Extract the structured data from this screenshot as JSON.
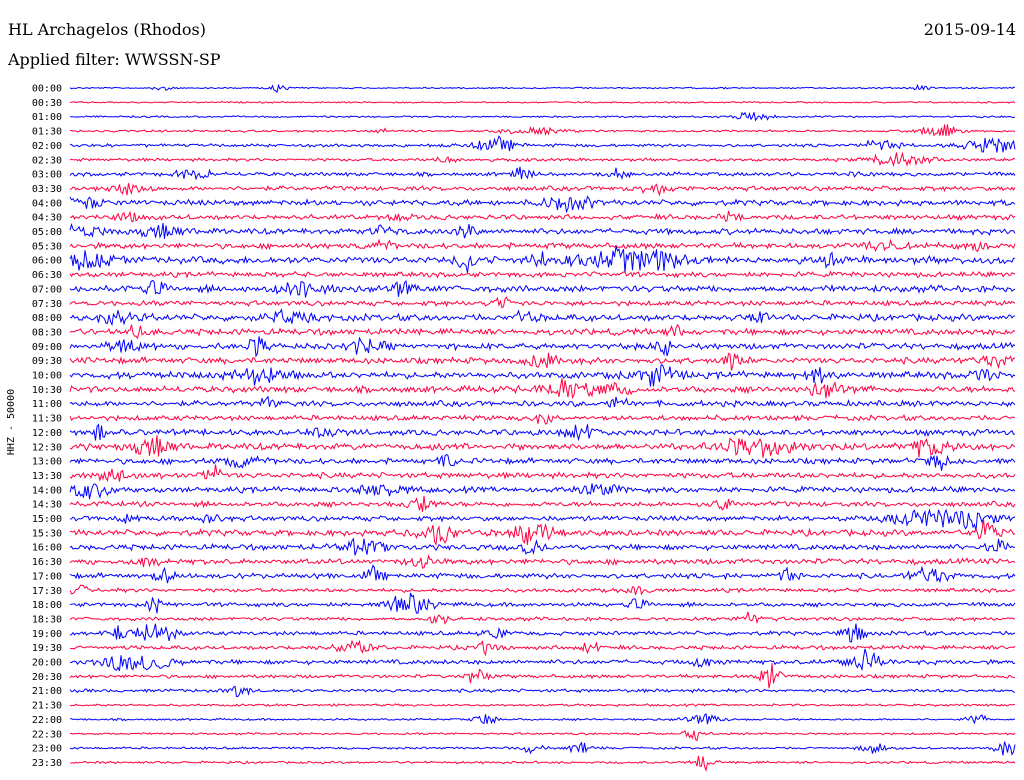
{
  "header": {
    "station": "HL Archagelos (Rhodos)",
    "date": "2015-09-14",
    "filter": "Applied filter: WWSSN-SP"
  },
  "colors": {
    "even_trace": "#0000ff",
    "odd_trace": "#ff0040"
  },
  "chart_data": {
    "type": "line",
    "title": "HL Archagelos (Rhodos)",
    "ylabel": "HHZ - 50000",
    "row_labels": [
      "00:00",
      "00:30",
      "01:00",
      "01:30",
      "02:00",
      "02:30",
      "03:00",
      "03:30",
      "04:00",
      "04:30",
      "05:00",
      "05:30",
      "06:00",
      "06:30",
      "07:00",
      "07:30",
      "08:00",
      "08:30",
      "09:00",
      "09:30",
      "10:00",
      "10:30",
      "11:00",
      "11:30",
      "12:00",
      "12:30",
      "13:00",
      "13:30",
      "14:00",
      "14:30",
      "15:00",
      "15:30",
      "16:00",
      "16:30",
      "17:00",
      "17:30",
      "18:00",
      "18:30",
      "19:00",
      "19:30",
      "20:00",
      "20:30",
      "21:00",
      "21:30",
      "22:00",
      "22:30",
      "23:00",
      "23:30"
    ],
    "row_noise": [
      0.6,
      0.6,
      0.7,
      0.8,
      1.2,
      1.2,
      1.5,
      1.8,
      2.2,
      2.0,
      2.3,
      2.2,
      2.8,
      2.0,
      2.6,
      2.0,
      2.6,
      2.4,
      2.4,
      2.4,
      2.6,
      2.5,
      2.2,
      2.0,
      2.3,
      2.6,
      2.2,
      2.2,
      2.2,
      2.0,
      2.0,
      2.4,
      2.2,
      2.2,
      2.0,
      1.5,
      1.6,
      1.4,
      1.6,
      1.6,
      1.8,
      1.4,
      1.3,
      0.9,
      0.8,
      0.8,
      0.9,
      0.9
    ],
    "events": [
      {
        "row": 0,
        "t": 0.1,
        "amp": 3,
        "dur": 0.01
      },
      {
        "row": 0,
        "t": 0.22,
        "amp": 4,
        "dur": 0.01
      },
      {
        "row": 0,
        "t": 0.9,
        "amp": 4,
        "dur": 0.01
      },
      {
        "row": 2,
        "t": 0.72,
        "amp": 5,
        "dur": 0.02
      },
      {
        "row": 3,
        "t": 0.33,
        "amp": 3,
        "dur": 0.01
      },
      {
        "row": 3,
        "t": 0.49,
        "amp": 4,
        "dur": 0.03
      },
      {
        "row": 3,
        "t": 0.92,
        "amp": 8,
        "dur": 0.02
      },
      {
        "row": 4,
        "t": 0.45,
        "amp": 9,
        "dur": 0.02
      },
      {
        "row": 4,
        "t": 0.86,
        "amp": 7,
        "dur": 0.02
      },
      {
        "row": 4,
        "t": 0.98,
        "amp": 10,
        "dur": 0.03
      },
      {
        "row": 5,
        "t": 0.88,
        "amp": 9,
        "dur": 0.03
      },
      {
        "row": 5,
        "t": 0.4,
        "amp": 4,
        "dur": 0.01
      },
      {
        "row": 6,
        "t": 0.12,
        "amp": 7,
        "dur": 0.01
      },
      {
        "row": 6,
        "t": 0.14,
        "amp": 6,
        "dur": 0.01
      },
      {
        "row": 6,
        "t": 0.48,
        "amp": 8,
        "dur": 0.01
      },
      {
        "row": 6,
        "t": 0.58,
        "amp": 6,
        "dur": 0.01
      },
      {
        "row": 6,
        "t": 0.84,
        "amp": 5,
        "dur": 0.01
      },
      {
        "row": 7,
        "t": 0.06,
        "amp": 6,
        "dur": 0.02
      },
      {
        "row": 7,
        "t": 0.62,
        "amp": 5,
        "dur": 0.02
      },
      {
        "row": 8,
        "t": 0.01,
        "amp": 8,
        "dur": 0.02
      },
      {
        "row": 8,
        "t": 0.52,
        "amp": 9,
        "dur": 0.02
      },
      {
        "row": 8,
        "t": 0.55,
        "amp": 8,
        "dur": 0.01
      },
      {
        "row": 9,
        "t": 0.06,
        "amp": 6,
        "dur": 0.01
      },
      {
        "row": 9,
        "t": 0.35,
        "amp": 5,
        "dur": 0.01
      },
      {
        "row": 9,
        "t": 0.7,
        "amp": 5,
        "dur": 0.01
      },
      {
        "row": 10,
        "t": 0.01,
        "amp": 8,
        "dur": 0.02
      },
      {
        "row": 10,
        "t": 0.1,
        "amp": 7,
        "dur": 0.02
      },
      {
        "row": 10,
        "t": 0.33,
        "amp": 7,
        "dur": 0.01
      },
      {
        "row": 10,
        "t": 0.42,
        "amp": 9,
        "dur": 0.01
      },
      {
        "row": 11,
        "t": 0.33,
        "amp": 6,
        "dur": 0.01
      },
      {
        "row": 11,
        "t": 0.86,
        "amp": 6,
        "dur": 0.02
      },
      {
        "row": 11,
        "t": 0.96,
        "amp": 7,
        "dur": 0.01
      },
      {
        "row": 12,
        "t": 0.02,
        "amp": 10,
        "dur": 0.02
      },
      {
        "row": 12,
        "t": 0.42,
        "amp": 14,
        "dur": 0.01
      },
      {
        "row": 12,
        "t": 0.5,
        "amp": 10,
        "dur": 0.01
      },
      {
        "row": 12,
        "t": 0.58,
        "amp": 11,
        "dur": 0.04
      },
      {
        "row": 12,
        "t": 0.62,
        "amp": 10,
        "dur": 0.03
      },
      {
        "row": 12,
        "t": 0.81,
        "amp": 12,
        "dur": 0.01
      },
      {
        "row": 14,
        "t": 0.09,
        "amp": 8,
        "dur": 0.01
      },
      {
        "row": 14,
        "t": 0.25,
        "amp": 8,
        "dur": 0.03
      },
      {
        "row": 14,
        "t": 0.35,
        "amp": 9,
        "dur": 0.01
      },
      {
        "row": 15,
        "t": 0.46,
        "amp": 7,
        "dur": 0.01
      },
      {
        "row": 16,
        "t": 0.05,
        "amp": 7,
        "dur": 0.02
      },
      {
        "row": 16,
        "t": 0.23,
        "amp": 8,
        "dur": 0.02
      },
      {
        "row": 16,
        "t": 0.48,
        "amp": 7,
        "dur": 0.01
      },
      {
        "row": 16,
        "t": 0.73,
        "amp": 7,
        "dur": 0.01
      },
      {
        "row": 17,
        "t": 0.07,
        "amp": 6,
        "dur": 0.01
      },
      {
        "row": 17,
        "t": 0.64,
        "amp": 6,
        "dur": 0.01
      },
      {
        "row": 18,
        "t": 0.06,
        "amp": 7,
        "dur": 0.02
      },
      {
        "row": 18,
        "t": 0.2,
        "amp": 11,
        "dur": 0.01
      },
      {
        "row": 18,
        "t": 0.31,
        "amp": 8,
        "dur": 0.02
      },
      {
        "row": 18,
        "t": 0.63,
        "amp": 8,
        "dur": 0.01
      },
      {
        "row": 19,
        "t": 0.5,
        "amp": 7,
        "dur": 0.02
      },
      {
        "row": 19,
        "t": 0.7,
        "amp": 8,
        "dur": 0.01
      },
      {
        "row": 19,
        "t": 0.98,
        "amp": 6,
        "dur": 0.02
      },
      {
        "row": 20,
        "t": 0.2,
        "amp": 10,
        "dur": 0.03
      },
      {
        "row": 20,
        "t": 0.62,
        "amp": 12,
        "dur": 0.02
      },
      {
        "row": 20,
        "t": 0.79,
        "amp": 12,
        "dur": 0.01
      },
      {
        "row": 20,
        "t": 0.97,
        "amp": 9,
        "dur": 0.01
      },
      {
        "row": 21,
        "t": 0.53,
        "amp": 12,
        "dur": 0.03
      },
      {
        "row": 21,
        "t": 0.58,
        "amp": 9,
        "dur": 0.01
      },
      {
        "row": 21,
        "t": 0.8,
        "amp": 9,
        "dur": 0.02
      },
      {
        "row": 22,
        "t": 0.21,
        "amp": 7,
        "dur": 0.01
      },
      {
        "row": 22,
        "t": 0.58,
        "amp": 7,
        "dur": 0.01
      },
      {
        "row": 23,
        "t": 0.5,
        "amp": 7,
        "dur": 0.01
      },
      {
        "row": 24,
        "t": 0.03,
        "amp": 8,
        "dur": 0.01
      },
      {
        "row": 24,
        "t": 0.27,
        "amp": 7,
        "dur": 0.01
      },
      {
        "row": 24,
        "t": 0.54,
        "amp": 9,
        "dur": 0.02
      },
      {
        "row": 25,
        "t": 0.09,
        "amp": 10,
        "dur": 0.02
      },
      {
        "row": 25,
        "t": 0.73,
        "amp": 11,
        "dur": 0.04
      },
      {
        "row": 25,
        "t": 0.91,
        "amp": 10,
        "dur": 0.02
      },
      {
        "row": 26,
        "t": 0.18,
        "amp": 7,
        "dur": 0.02
      },
      {
        "row": 26,
        "t": 0.4,
        "amp": 7,
        "dur": 0.01
      },
      {
        "row": 26,
        "t": 0.92,
        "amp": 8,
        "dur": 0.01
      },
      {
        "row": 27,
        "t": 0.05,
        "amp": 7,
        "dur": 0.02
      },
      {
        "row": 27,
        "t": 0.15,
        "amp": 12,
        "dur": 0.01
      },
      {
        "row": 28,
        "t": 0.02,
        "amp": 9,
        "dur": 0.02
      },
      {
        "row": 28,
        "t": 0.33,
        "amp": 8,
        "dur": 0.02
      },
      {
        "row": 28,
        "t": 0.56,
        "amp": 7,
        "dur": 0.02
      },
      {
        "row": 29,
        "t": 0.37,
        "amp": 11,
        "dur": 0.01
      },
      {
        "row": 29,
        "t": 0.69,
        "amp": 7,
        "dur": 0.01
      },
      {
        "row": 30,
        "t": 0.06,
        "amp": 7,
        "dur": 0.01
      },
      {
        "row": 30,
        "t": 0.15,
        "amp": 9,
        "dur": 0.01
      },
      {
        "row": 30,
        "t": 0.91,
        "amp": 10,
        "dur": 0.04
      },
      {
        "row": 30,
        "t": 0.96,
        "amp": 10,
        "dur": 0.02
      },
      {
        "row": 31,
        "t": 0.39,
        "amp": 12,
        "dur": 0.02
      },
      {
        "row": 31,
        "t": 0.49,
        "amp": 12,
        "dur": 0.02
      },
      {
        "row": 31,
        "t": 0.97,
        "amp": 14,
        "dur": 0.01
      },
      {
        "row": 32,
        "t": 0.31,
        "amp": 9,
        "dur": 0.02
      },
      {
        "row": 32,
        "t": 0.49,
        "amp": 9,
        "dur": 0.01
      },
      {
        "row": 32,
        "t": 0.98,
        "amp": 10,
        "dur": 0.01
      },
      {
        "row": 33,
        "t": 0.08,
        "amp": 8,
        "dur": 0.01
      },
      {
        "row": 33,
        "t": 0.37,
        "amp": 11,
        "dur": 0.01
      },
      {
        "row": 34,
        "t": 0.1,
        "amp": 7,
        "dur": 0.01
      },
      {
        "row": 34,
        "t": 0.32,
        "amp": 9,
        "dur": 0.01
      },
      {
        "row": 34,
        "t": 0.76,
        "amp": 11,
        "dur": 0.01
      },
      {
        "row": 34,
        "t": 0.91,
        "amp": 9,
        "dur": 0.02
      },
      {
        "row": 35,
        "t": 0.01,
        "amp": 6,
        "dur": 0.01
      },
      {
        "row": 35,
        "t": 0.6,
        "amp": 6,
        "dur": 0.01
      },
      {
        "row": 36,
        "t": 0.09,
        "amp": 9,
        "dur": 0.01
      },
      {
        "row": 36,
        "t": 0.36,
        "amp": 12,
        "dur": 0.02
      },
      {
        "row": 36,
        "t": 0.6,
        "amp": 6,
        "dur": 0.01
      },
      {
        "row": 37,
        "t": 0.39,
        "amp": 7,
        "dur": 0.01
      },
      {
        "row": 37,
        "t": 0.72,
        "amp": 7,
        "dur": 0.01
      },
      {
        "row": 38,
        "t": 0.05,
        "amp": 7,
        "dur": 0.01
      },
      {
        "row": 38,
        "t": 0.09,
        "amp": 12,
        "dur": 0.02
      },
      {
        "row": 38,
        "t": 0.45,
        "amp": 8,
        "dur": 0.01
      },
      {
        "row": 38,
        "t": 0.83,
        "amp": 14,
        "dur": 0.01
      },
      {
        "row": 39,
        "t": 0.3,
        "amp": 8,
        "dur": 0.02
      },
      {
        "row": 39,
        "t": 0.44,
        "amp": 7,
        "dur": 0.01
      },
      {
        "row": 39,
        "t": 0.55,
        "amp": 7,
        "dur": 0.01
      },
      {
        "row": 40,
        "t": 0.05,
        "amp": 10,
        "dur": 0.02
      },
      {
        "row": 40,
        "t": 0.09,
        "amp": 9,
        "dur": 0.02
      },
      {
        "row": 40,
        "t": 0.67,
        "amp": 8,
        "dur": 0.01
      },
      {
        "row": 40,
        "t": 0.84,
        "amp": 12,
        "dur": 0.02
      },
      {
        "row": 41,
        "t": 0.43,
        "amp": 10,
        "dur": 0.01
      },
      {
        "row": 41,
        "t": 0.74,
        "amp": 16,
        "dur": 0.01
      },
      {
        "row": 42,
        "t": 0.18,
        "amp": 7,
        "dur": 0.01
      },
      {
        "row": 44,
        "t": 0.44,
        "amp": 8,
        "dur": 0.01
      },
      {
        "row": 44,
        "t": 0.67,
        "amp": 6,
        "dur": 0.02
      },
      {
        "row": 44,
        "t": 0.96,
        "amp": 7,
        "dur": 0.01
      },
      {
        "row": 45,
        "t": 0.66,
        "amp": 8,
        "dur": 0.01
      },
      {
        "row": 46,
        "t": 0.49,
        "amp": 6,
        "dur": 0.01
      },
      {
        "row": 46,
        "t": 0.54,
        "amp": 7,
        "dur": 0.01
      },
      {
        "row": 46,
        "t": 0.85,
        "amp": 10,
        "dur": 0.01
      },
      {
        "row": 46,
        "t": 0.99,
        "amp": 12,
        "dur": 0.01
      },
      {
        "row": 47,
        "t": 0.67,
        "amp": 10,
        "dur": 0.01
      }
    ]
  }
}
